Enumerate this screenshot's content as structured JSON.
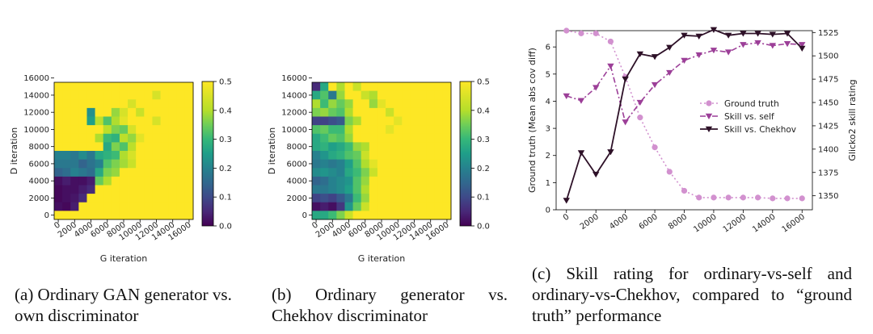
{
  "chart_data": [
    {
      "type": "heatmap",
      "xlabel": "G iteration",
      "ylabel": "D iteration",
      "xticks": [
        "0",
        "2000",
        "4000",
        "6000",
        "8000",
        "10000",
        "12000",
        "14000",
        "16000"
      ],
      "yticks": [
        "0",
        "2000",
        "4000",
        "6000",
        "8000",
        "10000",
        "12000",
        "14000",
        "16000"
      ],
      "colorbar": {
        "range": [
          0,
          0.5
        ],
        "ticks": [
          "0.0",
          "0.1",
          "0.2",
          "0.3",
          "0.4",
          "0.5"
        ]
      },
      "caption": "(a) Ordinary GAN generator vs. own discriminator",
      "grid": [
        [
          0.5,
          0.5,
          0.5,
          0.5,
          0.5,
          0.5,
          0.5,
          0.5,
          0.5,
          0.5,
          0.5,
          0.5,
          0.5,
          0.5,
          0.5,
          0.5,
          0.5
        ],
        [
          0.5,
          0.5,
          0.5,
          0.5,
          0.5,
          0.5,
          0.5,
          0.5,
          0.5,
          0.5,
          0.5,
          0.5,
          0.47,
          0.5,
          0.5,
          0.5,
          0.5
        ],
        [
          0.5,
          0.5,
          0.5,
          0.5,
          0.5,
          0.5,
          0.5,
          0.5,
          0.5,
          0.47,
          0.5,
          0.5,
          0.5,
          0.5,
          0.5,
          0.5,
          0.5
        ],
        [
          0.5,
          0.5,
          0.5,
          0.5,
          0.25,
          0.5,
          0.5,
          0.42,
          0.47,
          0.5,
          0.46,
          0.5,
          0.5,
          0.5,
          0.5,
          0.5,
          0.5
        ],
        [
          0.5,
          0.5,
          0.5,
          0.5,
          0.28,
          0.45,
          0.36,
          0.44,
          0.48,
          0.5,
          0.5,
          0.5,
          0.47,
          0.5,
          0.5,
          0.5,
          0.5
        ],
        [
          0.5,
          0.5,
          0.5,
          0.5,
          0.5,
          0.5,
          0.45,
          0.4,
          0.38,
          0.47,
          0.5,
          0.5,
          0.5,
          0.5,
          0.5,
          0.5,
          0.5
        ],
        [
          0.5,
          0.5,
          0.5,
          0.5,
          0.5,
          0.44,
          0.34,
          0.32,
          0.45,
          0.42,
          0.48,
          0.5,
          0.5,
          0.5,
          0.5,
          0.5,
          0.5
        ],
        [
          0.5,
          0.5,
          0.5,
          0.5,
          0.5,
          0.5,
          0.3,
          0.4,
          0.36,
          0.45,
          0.5,
          0.5,
          0.5,
          0.5,
          0.5,
          0.5,
          0.5
        ],
        [
          0.22,
          0.22,
          0.2,
          0.24,
          0.2,
          0.3,
          0.32,
          0.34,
          0.44,
          0.47,
          0.5,
          0.5,
          0.5,
          0.5,
          0.5,
          0.5,
          0.5
        ],
        [
          0.2,
          0.2,
          0.2,
          0.16,
          0.19,
          0.22,
          0.36,
          0.4,
          0.43,
          0.46,
          0.5,
          0.5,
          0.5,
          0.5,
          0.5,
          0.5,
          0.5
        ],
        [
          0.16,
          0.18,
          0.22,
          0.2,
          0.18,
          0.3,
          0.4,
          0.42,
          0.5,
          0.5,
          0.5,
          0.5,
          0.5,
          0.5,
          0.5,
          0.5,
          0.5
        ],
        [
          0.02,
          0.04,
          0.02,
          0.02,
          0.04,
          0.38,
          0.44,
          0.5,
          0.5,
          0.5,
          0.5,
          0.5,
          0.5,
          0.5,
          0.5,
          0.5,
          0.5
        ],
        [
          0.01,
          0.02,
          0.02,
          0.04,
          0.06,
          0.5,
          0.5,
          0.5,
          0.5,
          0.5,
          0.5,
          0.5,
          0.5,
          0.5,
          0.5,
          0.5,
          0.5
        ],
        [
          0.01,
          0.02,
          0.03,
          0.06,
          0.5,
          0.5,
          0.5,
          0.5,
          0.5,
          0.5,
          0.5,
          0.5,
          0.5,
          0.5,
          0.5,
          0.5,
          0.5
        ],
        [
          0.02,
          0.01,
          0.04,
          0.5,
          0.5,
          0.5,
          0.5,
          0.5,
          0.5,
          0.5,
          0.5,
          0.5,
          0.5,
          0.5,
          0.5,
          0.5,
          0.5
        ],
        [
          0.5,
          0.5,
          0.5,
          0.5,
          0.5,
          0.5,
          0.5,
          0.5,
          0.5,
          0.5,
          0.5,
          0.5,
          0.5,
          0.5,
          0.5,
          0.5,
          0.5
        ]
      ]
    },
    {
      "type": "heatmap",
      "xlabel": "G iteration",
      "ylabel": "D iteration",
      "xticks": [
        "0",
        "2000",
        "4000",
        "6000",
        "8000",
        "10000",
        "12000",
        "14000",
        "16000"
      ],
      "yticks": [
        "0",
        "2000",
        "4000",
        "6000",
        "8000",
        "10000",
        "12000",
        "14000",
        "16000"
      ],
      "colorbar": {
        "range": [
          0,
          0.5
        ],
        "ticks": [
          "0.0",
          "0.1",
          "0.2",
          "0.3",
          "0.4",
          "0.5"
        ]
      },
      "caption": "(b) Ordinary generator vs. Chekhov discriminator",
      "grid": [
        [
          0.06,
          0.3,
          0.5,
          0.44,
          0.5,
          0.46,
          0.5,
          0.5,
          0.5,
          0.5,
          0.5,
          0.5,
          0.5,
          0.5,
          0.5,
          0.5,
          0.5
        ],
        [
          0.3,
          0.36,
          0.2,
          0.42,
          0.5,
          0.5,
          0.46,
          0.44,
          0.5,
          0.5,
          0.5,
          0.5,
          0.5,
          0.5,
          0.5,
          0.5,
          0.5
        ],
        [
          0.44,
          0.34,
          0.42,
          0.38,
          0.42,
          0.5,
          0.5,
          0.42,
          0.48,
          0.5,
          0.5,
          0.5,
          0.5,
          0.5,
          0.5,
          0.5,
          0.5
        ],
        [
          0.4,
          0.42,
          0.38,
          0.36,
          0.44,
          0.5,
          0.5,
          0.5,
          0.5,
          0.46,
          0.5,
          0.5,
          0.5,
          0.5,
          0.5,
          0.5,
          0.5
        ],
        [
          0.1,
          0.1,
          0.12,
          0.14,
          0.4,
          0.44,
          0.5,
          0.5,
          0.5,
          0.5,
          0.48,
          0.5,
          0.5,
          0.5,
          0.5,
          0.5,
          0.5
        ],
        [
          0.36,
          0.38,
          0.34,
          0.34,
          0.44,
          0.5,
          0.5,
          0.5,
          0.5,
          0.48,
          0.5,
          0.5,
          0.5,
          0.5,
          0.5,
          0.5,
          0.5
        ],
        [
          0.3,
          0.34,
          0.38,
          0.36,
          0.42,
          0.5,
          0.5,
          0.5,
          0.5,
          0.5,
          0.5,
          0.5,
          0.5,
          0.5,
          0.5,
          0.5,
          0.5
        ],
        [
          0.3,
          0.32,
          0.28,
          0.3,
          0.34,
          0.42,
          0.44,
          0.5,
          0.5,
          0.5,
          0.5,
          0.5,
          0.5,
          0.5,
          0.5,
          0.5,
          0.5
        ],
        [
          0.22,
          0.26,
          0.3,
          0.32,
          0.36,
          0.38,
          0.46,
          0.5,
          0.5,
          0.5,
          0.5,
          0.5,
          0.5,
          0.5,
          0.5,
          0.5,
          0.5
        ],
        [
          0.2,
          0.22,
          0.2,
          0.22,
          0.28,
          0.36,
          0.44,
          0.48,
          0.5,
          0.5,
          0.5,
          0.5,
          0.5,
          0.5,
          0.5,
          0.5,
          0.5
        ],
        [
          0.24,
          0.26,
          0.24,
          0.22,
          0.3,
          0.34,
          0.4,
          0.46,
          0.5,
          0.5,
          0.5,
          0.5,
          0.5,
          0.5,
          0.5,
          0.5,
          0.5
        ],
        [
          0.16,
          0.18,
          0.22,
          0.24,
          0.26,
          0.36,
          0.42,
          0.5,
          0.5,
          0.5,
          0.5,
          0.5,
          0.5,
          0.5,
          0.5,
          0.5,
          0.5
        ],
        [
          0.2,
          0.2,
          0.22,
          0.24,
          0.28,
          0.36,
          0.44,
          0.5,
          0.5,
          0.5,
          0.5,
          0.5,
          0.5,
          0.5,
          0.5,
          0.5,
          0.5
        ],
        [
          0.1,
          0.12,
          0.1,
          0.14,
          0.2,
          0.34,
          0.42,
          0.5,
          0.5,
          0.5,
          0.5,
          0.5,
          0.5,
          0.5,
          0.5,
          0.5,
          0.5
        ],
        [
          0.02,
          0.04,
          0.02,
          0.08,
          0.26,
          0.38,
          0.46,
          0.5,
          0.5,
          0.5,
          0.5,
          0.5,
          0.5,
          0.5,
          0.5,
          0.5,
          0.5
        ],
        [
          0.3,
          0.3,
          0.34,
          0.4,
          0.46,
          0.5,
          0.5,
          0.5,
          0.5,
          0.5,
          0.5,
          0.5,
          0.5,
          0.5,
          0.5,
          0.5,
          0.5
        ]
      ]
    },
    {
      "type": "line",
      "xlabel": "",
      "ylabel": "Ground truth (Mean abs cov diff)",
      "y2label": "Glicko2 skill rating",
      "x": [
        0,
        1000,
        2000,
        3000,
        4000,
        5000,
        6000,
        7000,
        8000,
        9000,
        10000,
        11000,
        12000,
        13000,
        14000,
        15000,
        16000
      ],
      "xticks": [
        "0",
        "2000",
        "4000",
        "6000",
        "8000",
        "10000",
        "12000",
        "14000",
        "16000"
      ],
      "ylim": [
        0,
        6.6
      ],
      "yticks": [
        "0",
        "1",
        "2",
        "3",
        "4",
        "5",
        "6"
      ],
      "y2lim": [
        1335,
        1527
      ],
      "y2ticks": [
        "1350",
        "1375",
        "1400",
        "1425",
        "1450",
        "1475",
        "1500",
        "1525"
      ],
      "legend_position": "center-right",
      "caption": "(c) Skill rating for ordinary-vs-self and ordinary-vs-Chekhov, compared to “ground truth” performance",
      "series": [
        {
          "name": "Ground truth",
          "axis": "left",
          "color": "#d291cf",
          "values": [
            6.6,
            6.5,
            6.5,
            6.2,
            4.9,
            3.4,
            2.3,
            1.4,
            0.7,
            0.45,
            0.45,
            0.45,
            0.45,
            0.45,
            0.42,
            0.42,
            0.42
          ]
        },
        {
          "name": "Skill vs. self",
          "axis": "right",
          "color": "#9c3f98",
          "values": [
            1457,
            1452,
            1466,
            1489,
            1429,
            1450,
            1469,
            1482,
            1495,
            1501,
            1506,
            1504,
            1512,
            1514,
            1511,
            1513,
            1512
          ]
        },
        {
          "name": "Skill vs. Chekhov",
          "axis": "right",
          "color": "#2d1027",
          "values": [
            1345,
            1396,
            1373,
            1397,
            1475,
            1502,
            1499,
            1509,
            1522,
            1521,
            1528,
            1522,
            1524,
            1524,
            1523,
            1524,
            1508
          ]
        }
      ]
    }
  ]
}
